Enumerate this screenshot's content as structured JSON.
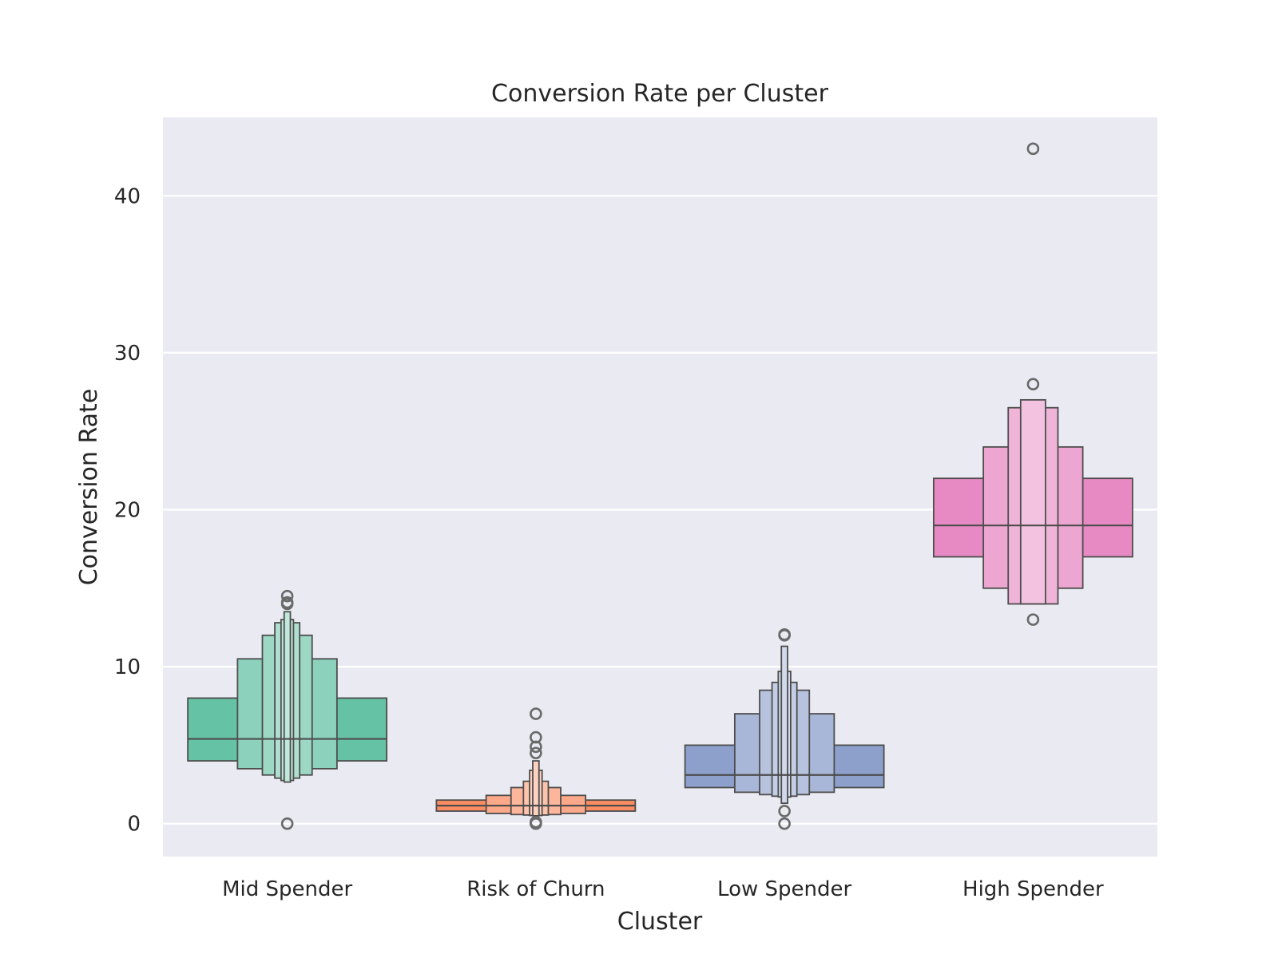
{
  "chart_data": {
    "type": "boxen",
    "title": "Conversion Rate per Cluster",
    "xlabel": "Cluster",
    "ylabel": "Conversion Rate",
    "ylim": [
      -2.1,
      45
    ],
    "yticks": [
      0,
      10,
      20,
      30,
      40
    ],
    "grid": true,
    "background": "#eaeaf2",
    "categories": [
      "Mid Spender",
      "Risk of Churn",
      "Low Spender",
      "High Spender"
    ],
    "series": [
      {
        "category": "Mid Spender",
        "color": "#66c2a5",
        "median": 5.4,
        "levels": [
          [
            4.0,
            8.0
          ],
          [
            3.5,
            10.5
          ],
          [
            3.1,
            12.0
          ],
          [
            2.9,
            12.8
          ],
          [
            2.75,
            13.0
          ],
          [
            2.65,
            13.5
          ]
        ],
        "outliers": [
          0.0,
          14.0,
          14.1,
          14.5
        ]
      },
      {
        "category": "Risk of Churn",
        "color": "#fc8d62",
        "median": 1.15,
        "levels": [
          [
            0.8,
            1.5
          ],
          [
            0.65,
            1.8
          ],
          [
            0.58,
            2.3
          ],
          [
            0.55,
            2.7
          ],
          [
            0.52,
            3.4
          ],
          [
            0.5,
            4.0
          ]
        ],
        "outliers": [
          0.0,
          0.1,
          4.5,
          4.9,
          5.5,
          7.0
        ]
      },
      {
        "category": "Low Spender",
        "color": "#8da0cb",
        "median": 3.1,
        "levels": [
          [
            2.3,
            5.0
          ],
          [
            2.0,
            7.0
          ],
          [
            1.85,
            8.5
          ],
          [
            1.75,
            9.0
          ],
          [
            1.7,
            9.7
          ],
          [
            1.3,
            11.3
          ]
        ],
        "outliers": [
          0.0,
          0.8,
          12.0,
          12.05
        ]
      },
      {
        "category": "High Spender",
        "color": "#e78ac3",
        "median": 19.0,
        "levels": [
          [
            17.0,
            22.0
          ],
          [
            15.0,
            24.0
          ],
          [
            14.0,
            26.5
          ],
          [
            14.0,
            27.0
          ]
        ],
        "outliers": [
          13.0,
          28.0,
          43.0
        ]
      }
    ]
  }
}
